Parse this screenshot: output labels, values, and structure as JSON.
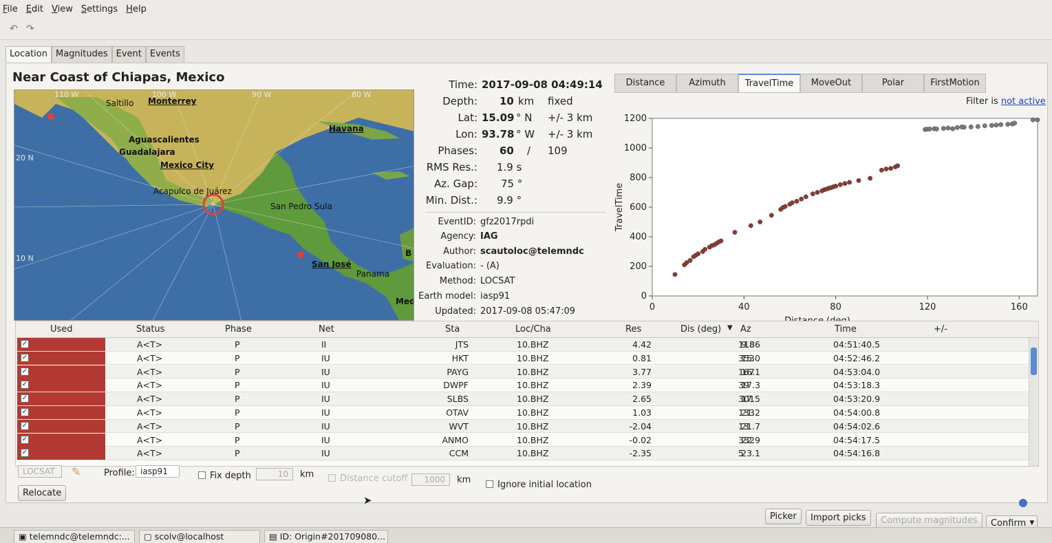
{
  "menu": [
    "File",
    "Edit",
    "View",
    "Settings",
    "Help"
  ],
  "tabs": [
    "Location",
    "Magnitudes",
    "Event",
    "Events"
  ],
  "region": "Near Coast of Chiapas, Mexico",
  "map": {
    "grid_labels": [
      "110 W",
      "100 W",
      "90 W",
      "80 W",
      "20 N",
      "10 N"
    ],
    "cities": [
      "Saltillo",
      "Monterrey",
      "Aguascalientes",
      "Guadalajara",
      "Mexico City",
      "Acapulco de Juárez",
      "Havana",
      "San Pedro Sula",
      "San José",
      "Panama",
      "B",
      "Med"
    ]
  },
  "origin": {
    "time_label": "Time:",
    "time": "2017-09-08 04:49:14",
    "depth_label": "Depth:",
    "depth": "10",
    "depth_unit": "km",
    "depth_note": "fixed",
    "lat_label": "Lat:",
    "lat": "15.09",
    "lat_unit": "° N",
    "lat_err": "+/- 3 km",
    "lon_label": "Lon:",
    "lon": "93.78",
    "lon_unit": "° W",
    "lon_err": "+/- 3 km",
    "phases_label": "Phases:",
    "phases_used": "60",
    "phases_sep": "/",
    "phases_total": "109",
    "rms_label": "RMS Res.:",
    "rms": "1.9 s",
    "gap_label": "Az. Gap:",
    "gap": "75 °",
    "mindist_label": "Min. Dist.:",
    "mindist": "9.9 °",
    "eventid_label": "EventID:",
    "eventid": "gfz2017rpdi",
    "agency_label": "Agency:",
    "agency": "IAG",
    "author_label": "Author:",
    "author": "scautoloc@telemndc",
    "evaluation_label": "Evaluation:",
    "evaluation": "- (A)",
    "method_label": "Method:",
    "method": "LOCSAT",
    "earthmodel_label": "Earth model:",
    "earthmodel": "iasp91",
    "updated_label": "Updated:",
    "updated": "2017-09-08 05:47:09"
  },
  "plot_tabs": [
    "Distance",
    "Azimuth",
    "TravelTime",
    "MoveOut",
    "Polar",
    "FirstMotion"
  ],
  "filter": {
    "label": "Filter is",
    "value": "not active"
  },
  "chart_data": {
    "type": "scatter",
    "xlabel": "Distance (deg)",
    "ylabel": "TravelTime",
    "xlim": [
      0,
      168
    ],
    "ylim": [
      0,
      1200
    ],
    "xticks": [
      0,
      40,
      80,
      120,
      160
    ],
    "yticks": [
      0,
      200,
      400,
      600,
      800,
      1000,
      1200
    ],
    "grid": false,
    "series": [
      {
        "color": "#8e3a33",
        "points": [
          [
            9.9,
            145
          ],
          [
            14,
            210
          ],
          [
            15,
            225
          ],
          [
            16.5,
            240
          ],
          [
            18,
            265
          ],
          [
            19,
            275
          ],
          [
            20,
            285
          ],
          [
            22,
            300
          ],
          [
            23,
            315
          ],
          [
            25,
            330
          ],
          [
            26,
            340
          ],
          [
            27,
            345
          ],
          [
            28,
            355
          ],
          [
            29,
            365
          ],
          [
            30,
            372
          ],
          [
            36,
            430
          ],
          [
            43,
            475
          ],
          [
            47,
            500
          ],
          [
            52,
            545
          ],
          [
            56,
            585
          ],
          [
            57,
            598
          ],
          [
            58,
            605
          ],
          [
            60,
            620
          ],
          [
            61,
            630
          ],
          [
            63,
            640
          ],
          [
            65,
            655
          ],
          [
            67,
            670
          ],
          [
            70,
            690
          ],
          [
            72,
            700
          ],
          [
            74,
            710
          ],
          [
            75,
            718
          ],
          [
            76,
            722
          ],
          [
            77,
            728
          ],
          [
            78,
            732
          ],
          [
            79,
            738
          ],
          [
            80,
            742
          ],
          [
            82,
            752
          ],
          [
            84,
            760
          ],
          [
            86,
            768
          ],
          [
            90,
            780
          ],
          [
            95,
            795
          ],
          [
            100,
            850
          ],
          [
            102,
            858
          ],
          [
            104,
            862
          ],
          [
            106,
            872
          ],
          [
            107,
            880
          ]
        ]
      },
      {
        "color": "#7a7a7a",
        "points": [
          [
            119,
            1125
          ],
          [
            120,
            1127
          ],
          [
            121,
            1128
          ],
          [
            123,
            1130
          ],
          [
            124,
            1128
          ],
          [
            127,
            1132
          ],
          [
            129,
            1135
          ],
          [
            131,
            1130
          ],
          [
            133,
            1138
          ],
          [
            135,
            1142
          ],
          [
            136,
            1140
          ],
          [
            139,
            1142
          ],
          [
            142,
            1145
          ],
          [
            145,
            1150
          ],
          [
            148,
            1152
          ],
          [
            150,
            1155
          ],
          [
            152,
            1158
          ],
          [
            155,
            1160
          ],
          [
            157,
            1162
          ],
          [
            158,
            1168
          ],
          [
            166,
            1190
          ],
          [
            168,
            1190
          ]
        ]
      }
    ]
  },
  "table": {
    "headers": [
      "Used",
      "Status",
      "Phase",
      "Net",
      "Sta",
      "Loc/Cha",
      "Res",
      "Dis (deg)",
      "Az",
      "Time",
      "+/-"
    ],
    "rows": [
      {
        "status": "A<T>",
        "phase": "P",
        "net": "II",
        "sta": "JTS",
        "loccha": "10.BHZ",
        "res": "4.42",
        "dis": "9.86",
        "az": "118",
        "time": "04:51:40.5"
      },
      {
        "status": "A<T>",
        "phase": "P",
        "net": "IU",
        "sta": "HKT",
        "loccha": "10.BHZ",
        "res": "0.81",
        "dis": "15.0",
        "az": "353",
        "time": "04:52:46.2"
      },
      {
        "status": "A<T>",
        "phase": "P",
        "net": "IU",
        "sta": "PAYG",
        "loccha": "10.BHZ",
        "res": "3.77",
        "dis": "16.1",
        "az": "167",
        "time": "04:53:04.0"
      },
      {
        "status": "A<T>",
        "phase": "P",
        "net": "IU",
        "sta": "DWPF",
        "loccha": "10.BHZ",
        "res": "2.39",
        "dis": "17.3",
        "az": "39",
        "time": "04:53:18.3"
      },
      {
        "status": "A<T>",
        "phase": "P",
        "net": "IU",
        "sta": "SLBS",
        "loccha": "10.BHZ",
        "res": "2.65",
        "dis": "17.5",
        "az": "301",
        "time": "04:53:20.9"
      },
      {
        "status": "A<T>",
        "phase": "P",
        "net": "IU",
        "sta": "OTAV",
        "loccha": "10.BHZ",
        "res": "1.03",
        "dis": "21.2",
        "az": "133",
        "time": "04:54:00.8"
      },
      {
        "status": "A<T>",
        "phase": "P",
        "net": "IU",
        "sta": "WVT",
        "loccha": "10.BHZ",
        "res": "-2.04",
        "dis": "21.7",
        "az": "13",
        "time": "04:54:02.6"
      },
      {
        "status": "A<T>",
        "phase": "P",
        "net": "IU",
        "sta": "ANMO",
        "loccha": "10.BHZ",
        "res": "-0.02",
        "dis": "22.9",
        "az": "332",
        "time": "04:54:17.5"
      },
      {
        "status": "A<T>",
        "phase": "P",
        "net": "IU",
        "sta": "CCM",
        "loccha": "10.BHZ",
        "res": "-2.35",
        "dis": "23.1",
        "az": "5",
        "time": "04:54:16.8"
      }
    ]
  },
  "controls": {
    "locator": "LOCSAT",
    "profile_label": "Profile:",
    "profile": "iasp91",
    "fix_depth_label": "Fix depth",
    "fix_depth_value": "10",
    "fix_depth_unit": "km",
    "distance_cutoff_label": "Distance cutoff",
    "distance_cutoff_value": "1000",
    "distance_cutoff_unit": "km",
    "ignore_initial_label": "Ignore initial location",
    "relocate": "Relocate",
    "picker": "Picker",
    "import_picks": "Import picks",
    "compute_magnitudes": "Compute magnitudes",
    "confirm": "Confirm"
  },
  "taskbar": [
    "telemndc@telemndc:...",
    "scolv@localhost",
    "ID: Origin#201709080..."
  ]
}
